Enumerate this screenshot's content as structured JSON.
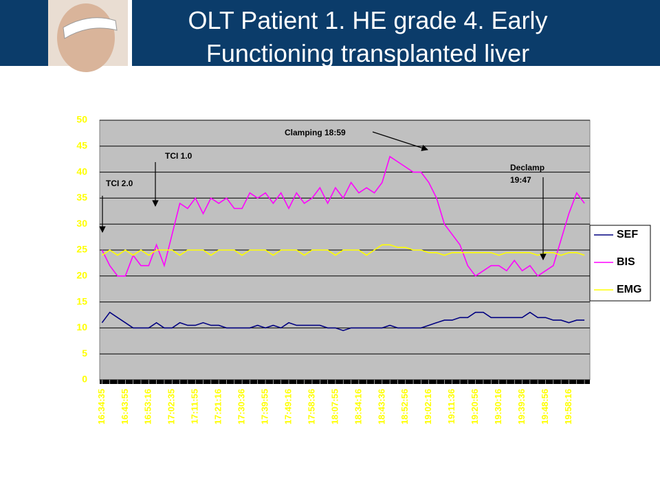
{
  "chart_data": {
    "type": "line",
    "title": [
      "OLT Patient 1. HE grade 4. Early",
      "Functioning transplanted liver"
    ],
    "categories": [
      "16:34:35",
      null,
      null,
      "16:43:55",
      null,
      null,
      "16:53:16",
      null,
      null,
      "17:02:35",
      null,
      null,
      "17:11:55",
      null,
      null,
      "17:21:16",
      null,
      null,
      "17:30:36",
      null,
      null,
      "17:39:55",
      null,
      null,
      "17:49:16",
      null,
      null,
      "17:58:36",
      null,
      null,
      "18:07:55",
      null,
      null,
      "18:34:16",
      null,
      null,
      "18:43:36",
      null,
      null,
      "18:52:56",
      null,
      null,
      "19:02:16",
      null,
      null,
      "19:11:36",
      null,
      null,
      "19:20:56",
      null,
      null,
      "19:30:16",
      null,
      null,
      "19:39:36",
      null,
      null,
      "19:48:56",
      null,
      null,
      "19:58:16",
      null,
      null
    ],
    "series": [
      {
        "name": "SEF",
        "color": "#000080",
        "values": [
          11,
          13,
          12,
          11,
          10,
          10,
          10,
          11,
          10,
          10,
          11,
          10.5,
          10.5,
          11,
          10.5,
          10.5,
          10,
          10,
          10,
          10,
          10.5,
          10,
          10.5,
          10,
          11,
          10.5,
          10.5,
          10.5,
          10.5,
          10,
          10,
          9.5,
          10,
          10,
          10,
          10,
          10,
          10.5,
          10,
          10,
          10,
          10,
          10.5,
          11,
          11.5,
          11.5,
          12,
          12,
          13,
          13,
          12,
          12,
          12,
          12,
          12,
          13,
          12,
          12,
          11.5,
          11.5,
          11,
          11.5,
          11.5
        ]
      },
      {
        "name": "BIS",
        "color": "#ff00ff",
        "values": [
          25,
          22,
          20,
          20,
          24,
          22,
          22,
          26,
          22,
          28,
          34,
          33,
          35,
          32,
          35,
          34,
          35,
          33,
          33,
          36,
          35,
          36,
          34,
          36,
          33,
          36,
          34,
          35,
          37,
          34,
          37,
          35,
          38,
          36,
          37,
          36,
          38,
          43,
          42,
          41,
          40,
          40,
          38,
          35,
          30,
          28,
          26,
          22,
          20,
          21,
          22,
          22,
          21,
          23,
          21,
          22,
          20,
          21,
          22,
          27,
          32,
          36,
          34
        ]
      },
      {
        "name": "EMG",
        "color": "#ffff00",
        "values": [
          24,
          25,
          24,
          25,
          24,
          25,
          24,
          25,
          25,
          25,
          24,
          25,
          25,
          25,
          24,
          25,
          25,
          25,
          24,
          25,
          25,
          25,
          24,
          25,
          25,
          25,
          24,
          25,
          25,
          25,
          24,
          25,
          25,
          25,
          24,
          25,
          26,
          26,
          25.5,
          25.5,
          25,
          25,
          24.5,
          24.5,
          24,
          24.5,
          24.5,
          24.5,
          24.5,
          24.5,
          24.5,
          24,
          24.5,
          24.5,
          24.5,
          24.5,
          24,
          24.5,
          24.5,
          24,
          24.5,
          24.5,
          24
        ]
      }
    ],
    "ylim": [
      0,
      50
    ],
    "yticks": [
      0,
      5,
      10,
      15,
      20,
      25,
      30,
      35,
      40,
      45,
      50
    ],
    "grid": true,
    "legend": "right",
    "annotations": [
      "TCI 2.0",
      "TCI 1.0",
      "Clamping 18:59",
      "Declamp",
      "19:47"
    ]
  }
}
